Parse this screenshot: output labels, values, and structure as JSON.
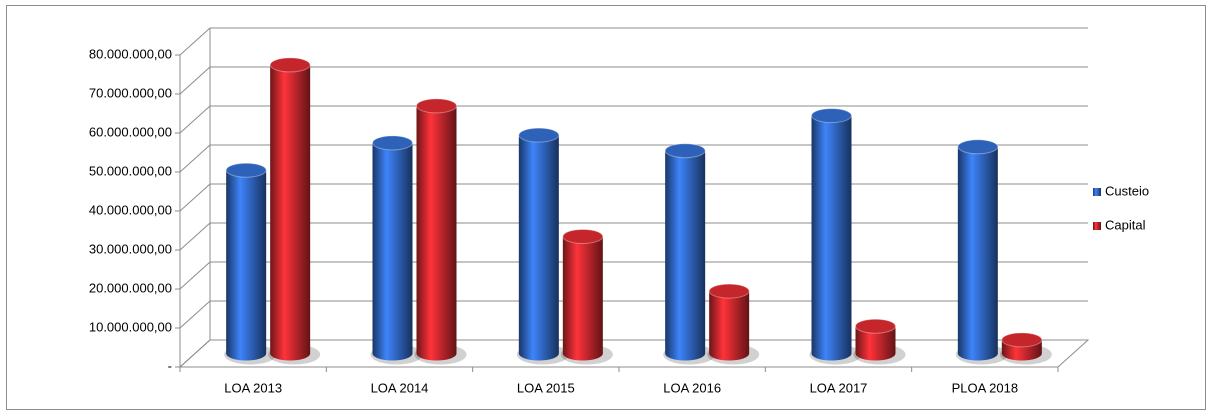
{
  "chart_data": {
    "type": "bar3d",
    "categories": [
      "LOA 2013",
      "LOA 2014",
      "LOA 2015",
      "LOA 2016",
      "LOA 2017",
      "PLOA 2018"
    ],
    "series": [
      {
        "name": "Custeio",
        "color": "#2e62b9",
        "values": [
          47000000,
          54000000,
          56000000,
          52000000,
          61000000,
          53000000
        ]
      },
      {
        "name": "Capital",
        "color": "#c4262b",
        "values": [
          74000000,
          63500000,
          30000000,
          16000000,
          7000000,
          3500000
        ]
      }
    ],
    "ylim": [
      0,
      80000000
    ],
    "yticks": [
      {
        "value": 0,
        "label": "-"
      },
      {
        "value": 10000000,
        "label": "10.000.000,00"
      },
      {
        "value": 20000000,
        "label": "20.000.000,00"
      },
      {
        "value": 30000000,
        "label": "30.000.000,00"
      },
      {
        "value": 40000000,
        "label": "40.000.000,00"
      },
      {
        "value": 50000000,
        "label": "50.000.000,00"
      },
      {
        "value": 60000000,
        "label": "60.000.000,00"
      },
      {
        "value": 70000000,
        "label": "70.000.000,00"
      },
      {
        "value": 80000000,
        "label": "80.000.000,00"
      }
    ],
    "grid": true,
    "legend": "right"
  }
}
